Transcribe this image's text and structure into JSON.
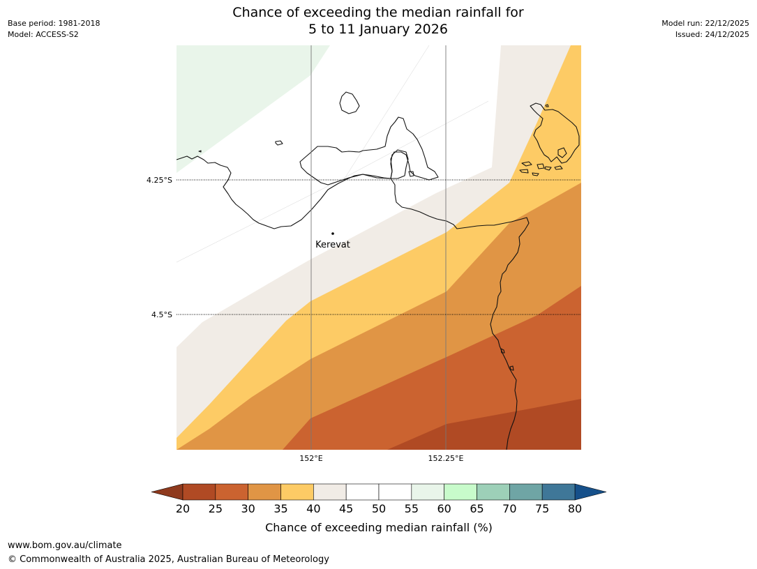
{
  "header": {
    "base_period": "Base period: 1981-2018",
    "model": "Model: ACCESS-S2",
    "model_run": "Model run: 22/12/2025",
    "issued": "Issued: 24/12/2025",
    "title_line1": "Chance of exceeding the median rainfall for",
    "title_line2": "5 to 11 January 2026"
  },
  "map": {
    "lat_labels": [
      "4.25°S",
      "4.5°S"
    ],
    "lon_labels": [
      "152°E",
      "152.25°E"
    ],
    "place": "Kerevat",
    "bands": [
      {
        "range": "20-25",
        "color": "#b04a24"
      },
      {
        "range": "25-30",
        "color": "#cb6330"
      },
      {
        "range": "30-35",
        "color": "#e09545"
      },
      {
        "range": "35-40",
        "color": "#fdcb65"
      },
      {
        "range": "40-45",
        "color": "#f1ece6"
      },
      {
        "range": "45-55",
        "color": "#ffffff"
      },
      {
        "range": "55-60",
        "color": "#e9f5ea"
      }
    ]
  },
  "colorbar": {
    "label": "Chance of exceeding median rainfall (%)",
    "ticks": [
      "20",
      "25",
      "30",
      "35",
      "40",
      "45",
      "50",
      "55",
      "60",
      "65",
      "70",
      "75",
      "80"
    ],
    "colors": [
      "#b04a24",
      "#cb6330",
      "#e09545",
      "#fdcb65",
      "#f1ece6",
      "#ffffff",
      "#ffffff",
      "#e9f5ea",
      "#c8fbcb",
      "#9dd0b8",
      "#6fa5a5",
      "#3f7798"
    ],
    "under_color": "#8f3a1e",
    "over_color": "#16508a"
  },
  "footer": {
    "url": "www.bom.gov.au/climate",
    "copyright": "© Commonwealth of Australia 2025, Australian Bureau of Meteorology"
  }
}
